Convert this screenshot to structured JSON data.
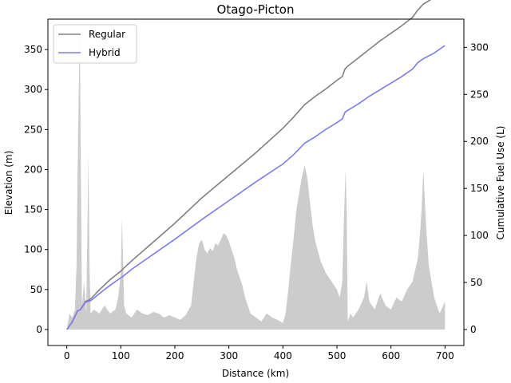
{
  "chart_data": {
    "type": "line",
    "title": "Otago-Picton",
    "xlabel": "Distance (km)",
    "ylabel_left": "Elevation (m)",
    "ylabel_right": "Cumulative Fuel Use (L)",
    "xlim": [
      -35,
      735
    ],
    "ylim_left": [
      -20,
      388
    ],
    "ylim_right": [
      -17,
      330
    ],
    "xticks": [
      0,
      100,
      200,
      300,
      400,
      500,
      600,
      700
    ],
    "yticks_left": [
      0,
      50,
      100,
      150,
      200,
      250,
      300,
      350
    ],
    "yticks_right": [
      0,
      50,
      100,
      150,
      200,
      250,
      300
    ],
    "legend_position": "top-left",
    "elevation": {
      "color": "#cccccc",
      "x": [
        0,
        5,
        10,
        15,
        18,
        20,
        22,
        24,
        26,
        28,
        32,
        36,
        38,
        40,
        42,
        44,
        50,
        60,
        70,
        80,
        90,
        95,
        100,
        102,
        104,
        106,
        110,
        120,
        130,
        140,
        150,
        160,
        170,
        180,
        190,
        200,
        210,
        220,
        230,
        235,
        240,
        245,
        250,
        255,
        260,
        265,
        270,
        275,
        280,
        285,
        290,
        295,
        300,
        305,
        310,
        315,
        320,
        325,
        330,
        340,
        350,
        360,
        370,
        380,
        390,
        400,
        405,
        410,
        415,
        420,
        425,
        430,
        435,
        440,
        442,
        445,
        450,
        455,
        460,
        470,
        480,
        490,
        500,
        505,
        510,
        513,
        516,
        518,
        520,
        525,
        530,
        540,
        550,
        555,
        560,
        570,
        580,
        590,
        600,
        610,
        620,
        630,
        640,
        650,
        655,
        658,
        660,
        662,
        665,
        670,
        680,
        690,
        700
      ],
      "values": [
        0,
        20,
        15,
        25,
        80,
        200,
        290,
        380,
        200,
        30,
        60,
        20,
        120,
        220,
        80,
        20,
        25,
        20,
        30,
        20,
        25,
        40,
        70,
        140,
        90,
        30,
        20,
        15,
        25,
        20,
        18,
        22,
        20,
        15,
        18,
        15,
        12,
        18,
        30,
        60,
        90,
        108,
        112,
        100,
        95,
        102,
        98,
        108,
        105,
        112,
        120,
        118,
        110,
        100,
        90,
        75,
        65,
        55,
        40,
        20,
        15,
        10,
        20,
        15,
        12,
        8,
        20,
        50,
        85,
        115,
        150,
        170,
        190,
        205,
        200,
        190,
        160,
        130,
        110,
        85,
        70,
        60,
        50,
        40,
        60,
        140,
        200,
        150,
        10,
        20,
        15,
        25,
        40,
        60,
        35,
        25,
        45,
        30,
        25,
        40,
        35,
        50,
        60,
        90,
        130,
        170,
        200,
        170,
        130,
        80,
        40,
        20,
        35
      ]
    },
    "series": [
      {
        "name": "Regular",
        "color": "#808080",
        "x": [
          0,
          10,
          20,
          25,
          35,
          40,
          45,
          60,
          80,
          100,
          105,
          120,
          150,
          200,
          250,
          300,
          350,
          400,
          420,
          440,
          460,
          480,
          500,
          510,
          515,
          520,
          540,
          560,
          580,
          600,
          620,
          640,
          650,
          660,
          680,
          700
        ],
        "values": [
          0,
          8,
          20,
          21,
          30,
          31,
          33,
          42,
          53,
          62,
          65,
          73,
          88,
          113,
          140,
          164,
          188,
          214,
          226,
          239,
          248,
          256,
          265,
          269,
          277,
          280,
          289,
          298,
          307,
          315,
          323,
          332,
          340,
          346,
          353,
          363
        ]
      },
      {
        "name": "Hybrid",
        "color": "#7b7bf0",
        "x": [
          0,
          10,
          20,
          25,
          35,
          40,
          45,
          60,
          80,
          100,
          105,
          120,
          150,
          200,
          250,
          300,
          350,
          400,
          420,
          440,
          460,
          480,
          500,
          510,
          515,
          520,
          540,
          560,
          580,
          600,
          620,
          640,
          650,
          660,
          680,
          700
        ],
        "values": [
          0,
          8,
          20,
          21,
          29,
          30,
          31,
          38,
          47,
          55,
          57,
          64,
          76,
          96,
          117,
          137,
          157,
          176,
          186,
          198,
          205,
          213,
          220,
          224,
          231,
          233,
          240,
          248,
          255,
          262,
          269,
          277,
          284,
          288,
          294,
          302
        ]
      }
    ]
  }
}
